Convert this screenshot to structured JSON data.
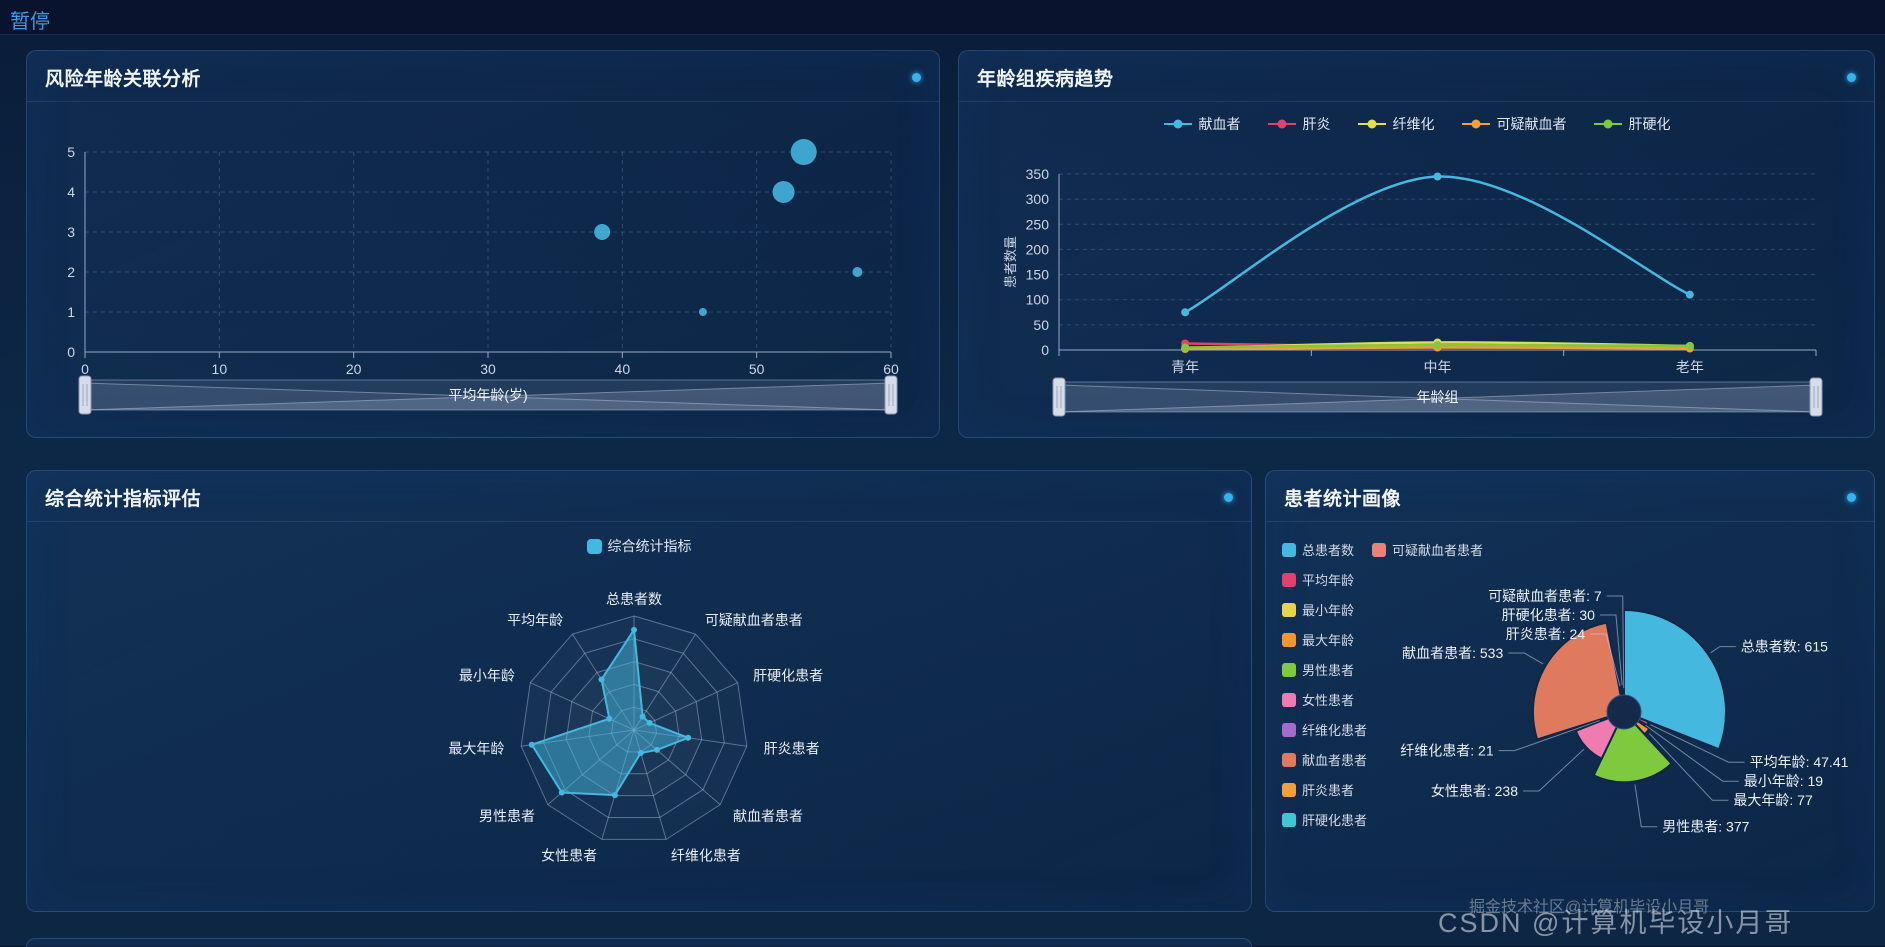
{
  "topbar": {
    "pause_label": "暂停"
  },
  "watermarks": {
    "juejin": "掘金技术社区@计算机毕设小月哥",
    "csdn": "CSDN @计算机毕设小月哥"
  },
  "panels": [
    {
      "id": "scatter",
      "title": "风险年龄关联分析"
    },
    {
      "id": "trend",
      "title": "年龄组疾病趋势"
    },
    {
      "id": "radar",
      "title": "综合统计指标评估"
    },
    {
      "id": "pie",
      "title": "患者统计画像"
    }
  ],
  "colors": {
    "accent": "#34b3ef",
    "panel_border": "#3c6ea8",
    "grid_line": "#4d6a96"
  },
  "chart_data": [
    {
      "id": "risk-age-scatter",
      "type": "scatter",
      "title": "风险年龄关联分析",
      "xlabel": "平均年龄(岁)",
      "ylabel": "",
      "xlim": [
        0,
        60
      ],
      "ylim": [
        0,
        5
      ],
      "x_ticks": [
        0,
        10,
        20,
        30,
        40,
        50,
        60
      ],
      "y_ticks": [
        0,
        1,
        2,
        3,
        4,
        5
      ],
      "grid": true,
      "point_color": "#45b8e0",
      "points": [
        {
          "x": 38.5,
          "y": 3,
          "r": 8
        },
        {
          "x": 46,
          "y": 1,
          "r": 4
        },
        {
          "x": 52,
          "y": 4,
          "r": 11
        },
        {
          "x": 53.5,
          "y": 5,
          "r": 13
        },
        {
          "x": 57.5,
          "y": 2,
          "r": 5
        }
      ],
      "datazoom_label": "平均年龄(岁)"
    },
    {
      "id": "age-group-trend",
      "type": "line",
      "title": "年龄组疾病趋势",
      "categories": [
        "青年",
        "中年",
        "老年"
      ],
      "xlabel": "年龄组",
      "ylabel": "患者数量",
      "ylim": [
        0,
        350
      ],
      "y_ticks": [
        0,
        50,
        100,
        150,
        200,
        250,
        300,
        350
      ],
      "grid": true,
      "legend_position": "top",
      "series": [
        {
          "name": "献血者",
          "color": "#45b8e0",
          "values": [
            75,
            345,
            110
          ]
        },
        {
          "name": "肝炎",
          "color": "#e0426e",
          "values": [
            13,
            6,
            5
          ]
        },
        {
          "name": "纤维化",
          "color": "#e3de4d",
          "values": [
            3,
            15,
            8
          ]
        },
        {
          "name": "可疑献血者",
          "color": "#ef9f3c",
          "values": [
            2,
            5,
            3
          ]
        },
        {
          "name": "肝硬化",
          "color": "#7ec93e",
          "values": [
            5,
            10,
            8
          ]
        }
      ],
      "datazoom_label": "年龄组"
    },
    {
      "id": "stats-radar",
      "type": "radar",
      "title": "综合统计指标评估",
      "series_name": "综合统计指标",
      "series_color": "#45b8e0",
      "levels": 5,
      "indicators": [
        {
          "name": "总患者数",
          "max": 700
        },
        {
          "name": "可疑献血者患者",
          "max": 50
        },
        {
          "name": "肝硬化患者",
          "max": 200
        },
        {
          "name": "肝炎患者",
          "max": 50
        },
        {
          "name": "献血者患者",
          "max": 2000
        },
        {
          "name": "纤维化患者",
          "max": 100
        },
        {
          "name": "女性患者",
          "max": 400
        },
        {
          "name": "男性患者",
          "max": 450
        },
        {
          "name": "最大年龄",
          "max": 85
        },
        {
          "name": "最小年龄",
          "max": 80
        },
        {
          "name": "平均年龄",
          "max": 90
        }
      ],
      "values": [
        615,
        7,
        30,
        24,
        533,
        21,
        238,
        377,
        77,
        19,
        47.41
      ]
    },
    {
      "id": "patient-portrait-pie",
      "type": "pie",
      "title": "患者统计画像",
      "rose": true,
      "slices": [
        {
          "name": "总患者数",
          "value": 615,
          "color": "#45b8e0"
        },
        {
          "name": "平均年龄",
          "value": 47.41,
          "color": "#e0426e"
        },
        {
          "name": "最小年龄",
          "value": 19,
          "color": "#e8d44a"
        },
        {
          "name": "最大年龄",
          "value": 77,
          "color": "#f0972f"
        },
        {
          "name": "男性患者",
          "value": 377,
          "color": "#7ec93e"
        },
        {
          "name": "女性患者",
          "value": 238,
          "color": "#f07bb0"
        },
        {
          "name": "纤维化患者",
          "value": 21,
          "color": "#a36cc9"
        },
        {
          "name": "献血者患者",
          "value": 533,
          "color": "#e07a5f"
        },
        {
          "name": "肝炎患者",
          "value": 24,
          "color": "#f0a03c"
        },
        {
          "name": "肝硬化患者",
          "value": 30,
          "color": "#3fc8d4"
        },
        {
          "name": "可疑献血者患者",
          "value": 7,
          "color": "#e8837a"
        }
      ],
      "legend_order": [
        "总患者数",
        "可疑献血者患者",
        "平均年龄",
        "最小年龄",
        "最大年龄",
        "男性患者",
        "女性患者",
        "纤维化患者",
        "献血者患者",
        "肝炎患者",
        "肝硬化患者"
      ]
    }
  ]
}
